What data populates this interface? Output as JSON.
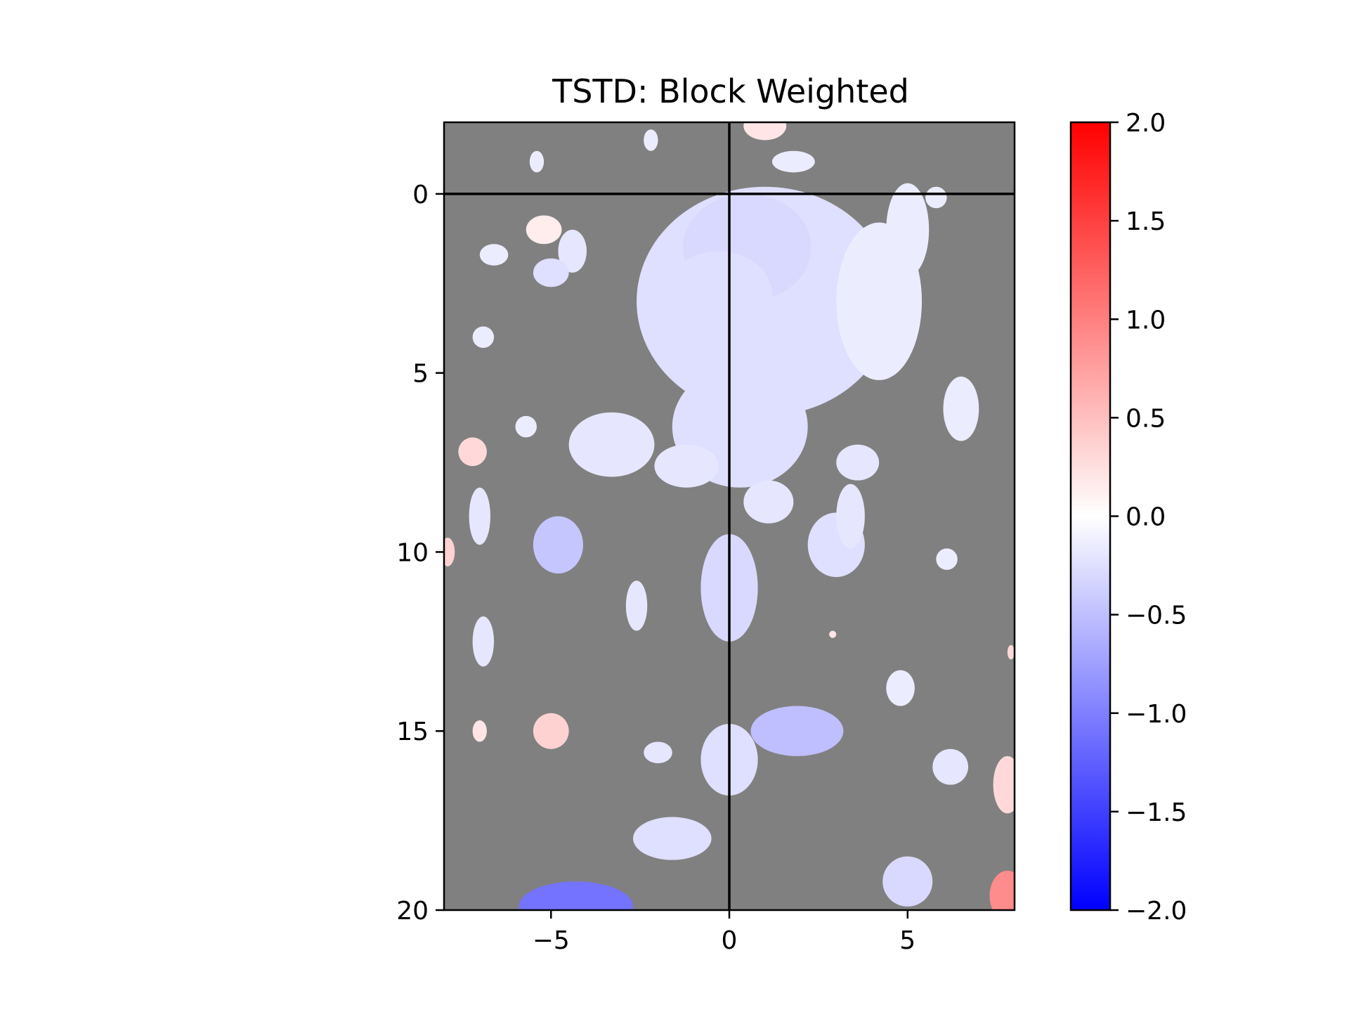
{
  "chart_data": {
    "type": "heatmap",
    "title": "TSTD: Block Weighted",
    "xlabel": "",
    "ylabel": "",
    "xlim": [
      -8,
      8
    ],
    "ylim": [
      20,
      -2
    ],
    "x_ticks": [
      -5,
      0,
      5
    ],
    "x_tick_labels": [
      "−5",
      "0",
      "5"
    ],
    "y_ticks": [
      0,
      5,
      10,
      15,
      20
    ],
    "y_tick_labels": [
      "0",
      "5",
      "10",
      "15",
      "20"
    ],
    "reference_lines": {
      "vertical_x": 0,
      "horizontal_y": 0,
      "color": "#000000"
    },
    "masked_color": "#808080",
    "colorbar": {
      "colormap": "bwr",
      "colors": [
        "#0000ff",
        "#ffffff",
        "#ff0000"
      ],
      "vmin": -2.0,
      "vmax": 2.0,
      "ticks": [
        2.0,
        1.5,
        1.0,
        0.5,
        0.0,
        -0.5,
        -1.0,
        -1.5,
        -2.0
      ],
      "tick_labels": [
        "2.0",
        "1.5",
        "1.0",
        "0.5",
        "0.0",
        "−0.5",
        "−1.0",
        "−1.5",
        "−2.0"
      ]
    },
    "blobs": [
      {
        "x": 1.0,
        "y": 3.0,
        "rx": 3.6,
        "ry": 3.2,
        "value": -0.25
      },
      {
        "x": 0.5,
        "y": 1.5,
        "rx": 1.8,
        "ry": 1.5,
        "value": -0.3
      },
      {
        "x": 0.3,
        "y": 6.5,
        "rx": 1.9,
        "ry": 1.7,
        "value": -0.25
      },
      {
        "x": 4.2,
        "y": 3.0,
        "rx": 1.2,
        "ry": 2.2,
        "value": -0.15
      },
      {
        "x": 5.0,
        "y": 1.0,
        "rx": 0.6,
        "ry": 1.3,
        "value": -0.15
      },
      {
        "x": -3.3,
        "y": 7.0,
        "rx": 1.2,
        "ry": 0.9,
        "value": -0.2
      },
      {
        "x": -1.2,
        "y": 7.6,
        "rx": 0.9,
        "ry": 0.6,
        "value": -0.2
      },
      {
        "x": 1.1,
        "y": 8.6,
        "rx": 0.7,
        "ry": 0.6,
        "value": -0.2
      },
      {
        "x": -0.3,
        "y": 2.8,
        "rx": 1.5,
        "ry": 1.2,
        "value": -0.25
      },
      {
        "x": -5.2,
        "y": 1.0,
        "rx": 0.5,
        "ry": 0.4,
        "value": 0.15
      },
      {
        "x": -4.4,
        "y": 1.6,
        "rx": 0.4,
        "ry": 0.6,
        "value": -0.2
      },
      {
        "x": -5.0,
        "y": 2.2,
        "rx": 0.5,
        "ry": 0.4,
        "value": -0.25
      },
      {
        "x": -6.6,
        "y": 1.7,
        "rx": 0.4,
        "ry": 0.3,
        "value": -0.15
      },
      {
        "x": -5.4,
        "y": -0.9,
        "rx": 0.2,
        "ry": 0.3,
        "value": -0.15
      },
      {
        "x": -2.2,
        "y": -1.5,
        "rx": 0.2,
        "ry": 0.3,
        "value": -0.15
      },
      {
        "x": 1.0,
        "y": -1.9,
        "rx": 0.6,
        "ry": 0.4,
        "value": 0.2
      },
      {
        "x": 1.8,
        "y": -0.9,
        "rx": 0.6,
        "ry": 0.3,
        "value": -0.15
      },
      {
        "x": 5.8,
        "y": 0.1,
        "rx": 0.3,
        "ry": 0.3,
        "value": -0.15
      },
      {
        "x": -6.9,
        "y": 4.0,
        "rx": 0.3,
        "ry": 0.3,
        "value": -0.15
      },
      {
        "x": -5.7,
        "y": 6.5,
        "rx": 0.3,
        "ry": 0.3,
        "value": -0.15
      },
      {
        "x": -7.2,
        "y": 7.2,
        "rx": 0.4,
        "ry": 0.4,
        "value": 0.3
      },
      {
        "x": -7.0,
        "y": 9.0,
        "rx": 0.3,
        "ry": 0.8,
        "value": -0.2
      },
      {
        "x": -4.8,
        "y": 9.8,
        "rx": 0.7,
        "ry": 0.8,
        "value": -0.45
      },
      {
        "x": -7.9,
        "y": 10.0,
        "rx": 0.2,
        "ry": 0.4,
        "value": 0.35
      },
      {
        "x": -2.6,
        "y": 11.5,
        "rx": 0.3,
        "ry": 0.7,
        "value": -0.2
      },
      {
        "x": -6.9,
        "y": 12.5,
        "rx": 0.3,
        "ry": 0.7,
        "value": -0.2
      },
      {
        "x": 0.0,
        "y": 11.0,
        "rx": 0.8,
        "ry": 1.5,
        "value": -0.3
      },
      {
        "x": 3.0,
        "y": 9.8,
        "rx": 0.8,
        "ry": 0.9,
        "value": -0.25
      },
      {
        "x": 3.4,
        "y": 9.0,
        "rx": 0.4,
        "ry": 0.9,
        "value": -0.2
      },
      {
        "x": 6.5,
        "y": 6.0,
        "rx": 0.5,
        "ry": 0.9,
        "value": -0.15
      },
      {
        "x": 3.6,
        "y": 7.5,
        "rx": 0.6,
        "ry": 0.5,
        "value": -0.2
      },
      {
        "x": 6.1,
        "y": 10.2,
        "rx": 0.3,
        "ry": 0.3,
        "value": -0.15
      },
      {
        "x": 4.8,
        "y": 13.8,
        "rx": 0.4,
        "ry": 0.5,
        "value": -0.15
      },
      {
        "x": 1.9,
        "y": 15.0,
        "rx": 1.3,
        "ry": 0.7,
        "value": -0.5
      },
      {
        "x": 0.0,
        "y": 15.8,
        "rx": 0.8,
        "ry": 1.0,
        "value": -0.25
      },
      {
        "x": -5.0,
        "y": 15.0,
        "rx": 0.5,
        "ry": 0.5,
        "value": 0.35
      },
      {
        "x": -7.0,
        "y": 15.0,
        "rx": 0.2,
        "ry": 0.3,
        "value": 0.2
      },
      {
        "x": -2.0,
        "y": 15.6,
        "rx": 0.4,
        "ry": 0.3,
        "value": -0.2
      },
      {
        "x": 6.2,
        "y": 16.0,
        "rx": 0.5,
        "ry": 0.5,
        "value": -0.2
      },
      {
        "x": 7.8,
        "y": 16.5,
        "rx": 0.4,
        "ry": 0.8,
        "value": 0.3
      },
      {
        "x": -1.6,
        "y": 18.0,
        "rx": 1.1,
        "ry": 0.6,
        "value": -0.25
      },
      {
        "x": 5.0,
        "y": 19.2,
        "rx": 0.7,
        "ry": 0.7,
        "value": -0.3
      },
      {
        "x": -4.3,
        "y": 19.9,
        "rx": 1.6,
        "ry": 0.7,
        "value": -1.1
      },
      {
        "x": 7.8,
        "y": 19.6,
        "rx": 0.5,
        "ry": 0.7,
        "value": 0.9
      },
      {
        "x": 2.9,
        "y": 12.3,
        "rx": 0.1,
        "ry": 0.1,
        "value": 0.2
      },
      {
        "x": 7.9,
        "y": 12.8,
        "rx": 0.1,
        "ry": 0.2,
        "value": 0.3
      }
    ]
  }
}
